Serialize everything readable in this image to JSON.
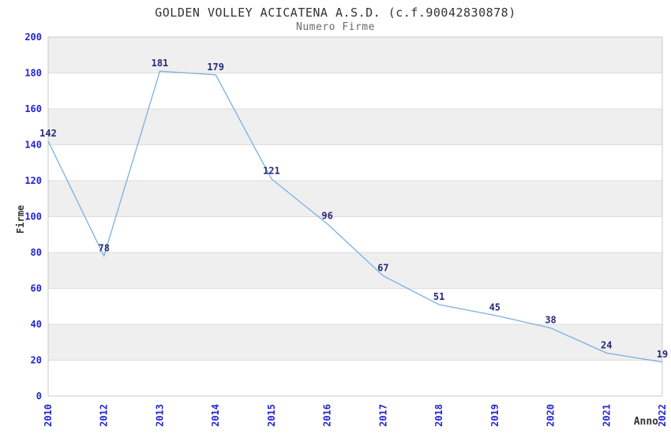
{
  "chart_data": {
    "type": "line",
    "title": "GOLDEN VOLLEY ACICATENA A.S.D. (c.f.90042830878)",
    "subtitle": "Numero Firme",
    "xlabel": "Anno",
    "ylabel": "Firme",
    "categories": [
      "2010",
      "2012",
      "2013",
      "2014",
      "2015",
      "2016",
      "2017",
      "2018",
      "2019",
      "2020",
      "2021",
      "2022"
    ],
    "values": [
      142,
      78,
      181,
      179,
      121,
      96,
      67,
      51,
      45,
      38,
      24,
      19
    ],
    "ylim": [
      0,
      200
    ],
    "ytick_step": 20,
    "y_tick_labels": [
      "0",
      "20",
      "40",
      "60",
      "80",
      "100",
      "120",
      "140",
      "160",
      "180",
      "200"
    ],
    "grid": true,
    "legend_position": "none",
    "data_labels_visible": true,
    "x_tick_rotation_degrees": -90,
    "colors": {
      "line": "#7cb0e2",
      "band_gray": "#efefef",
      "band_white": "#ffffff",
      "gridline": "#dcdcdc",
      "plot_border": "#c9c9c9",
      "axis_tick_labels": "#2424d0",
      "data_labels": "#28287a",
      "title": "#333333",
      "subtitle": "#6b6b6b",
      "axis_titles": "#333333",
      "background": "#ffffff"
    }
  }
}
